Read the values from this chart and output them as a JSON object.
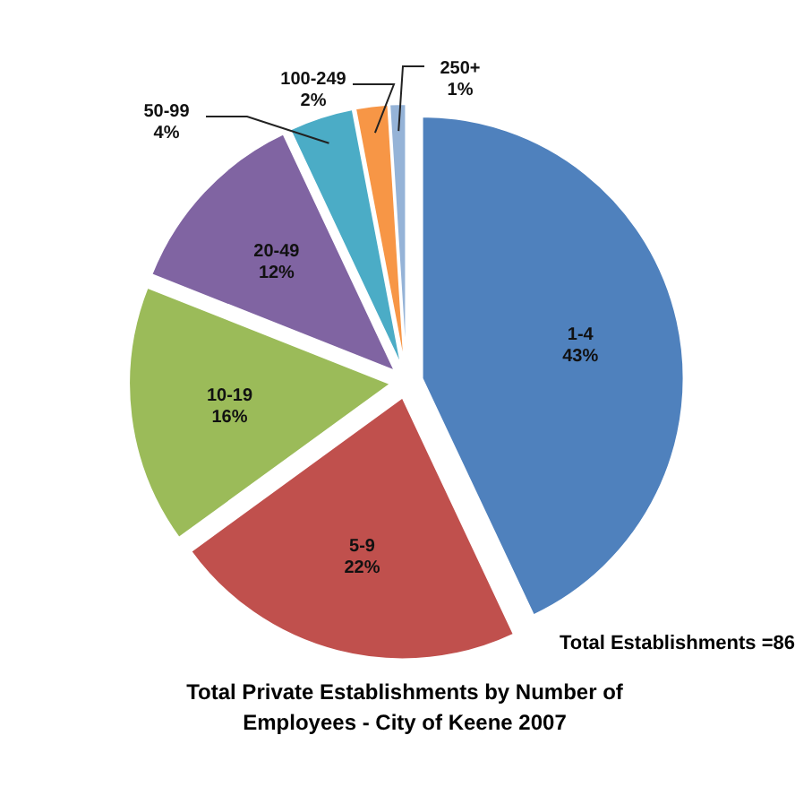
{
  "chart_data": {
    "type": "pie",
    "title": "Total Private Establishments by Number of Employees - City of Keene 2007",
    "categories": [
      "1-4",
      "5-9",
      "10-19",
      "20-49",
      "50-99",
      "100-249",
      "250+"
    ],
    "values": [
      43,
      22,
      16,
      12,
      4,
      2,
      1
    ],
    "colors": [
      "#4f81bd",
      "#c0504d",
      "#9bbb59",
      "#8064a2",
      "#4bacc6",
      "#f79646",
      "#95b3d7"
    ],
    "value_labels": [
      "43%",
      "22%",
      "16%",
      "12%",
      "4%",
      "2%",
      "1%"
    ],
    "annotations": [
      "Total Establishments =86"
    ]
  }
}
